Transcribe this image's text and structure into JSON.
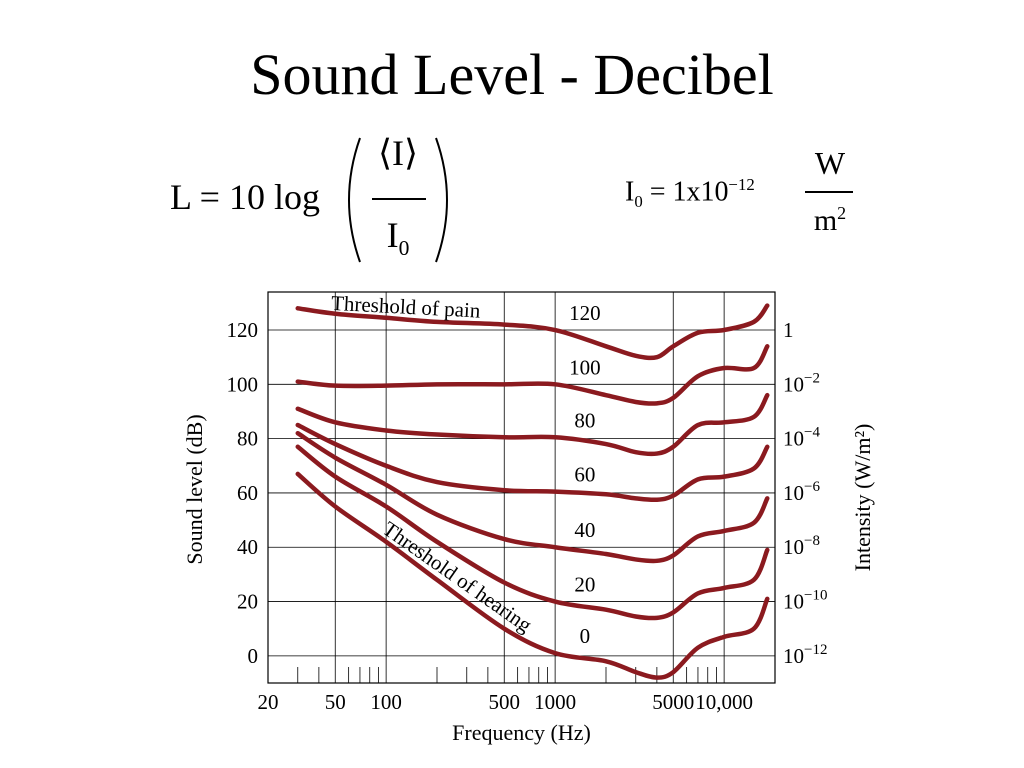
{
  "slide": {
    "title": "Sound Level - Decibel"
  },
  "formula_level": {
    "lhs": "L = 10 log",
    "numerator": "⟨I⟩",
    "denominator_base": "I",
    "denominator_sub": "0"
  },
  "formula_reference": {
    "symbol": "I",
    "symbol_sub": "0",
    "equals": " = 1x10",
    "exponent": "−12",
    "unit_numerator": "W",
    "unit_denominator_base": "m",
    "unit_denominator_exp": "2"
  },
  "colors": {
    "curve": "#8b1a1f",
    "grid": "#000000",
    "background": "#ffffff"
  },
  "chart_data": {
    "type": "line",
    "x_scale": "log",
    "xlabel": "Frequency (Hz)",
    "ylabel": "Sound level (dB)",
    "y2label": "Intensity (W/m²)",
    "xlim": [
      20,
      20000
    ],
    "ylim": [
      -10,
      134
    ],
    "x_ticks": [
      "20",
      "50",
      "100",
      "500",
      "1000",
      "5000",
      "10,000"
    ],
    "x_tick_values": [
      20,
      50,
      100,
      500,
      1000,
      5000,
      10000
    ],
    "y_ticks": [
      "0",
      "20",
      "40",
      "60",
      "80",
      "100",
      "120"
    ],
    "y_tick_values": [
      0,
      20,
      40,
      60,
      80,
      100,
      120
    ],
    "y2_ticks": [
      {
        "base": "1",
        "exp": ""
      },
      {
        "base": "10",
        "exp": "−2"
      },
      {
        "base": "10",
        "exp": "−4"
      },
      {
        "base": "10",
        "exp": "−6"
      },
      {
        "base": "10",
        "exp": "−8"
      },
      {
        "base": "10",
        "exp": "−10"
      },
      {
        "base": "10",
        "exp": "−12"
      }
    ],
    "y2_tick_values": [
      120,
      100,
      80,
      60,
      40,
      20,
      0
    ],
    "vertical_gridlines": [
      50,
      100,
      500,
      1000,
      5000,
      10000
    ],
    "minor_ticks": [
      30,
      40,
      60,
      70,
      80,
      90,
      200,
      300,
      400,
      600,
      700,
      800,
      900,
      2000,
      3000,
      4000,
      6000,
      7000,
      8000,
      9000
    ],
    "grid": true,
    "series": [
      {
        "name": "120",
        "x": [
          30,
          50,
          100,
          200,
          500,
          1000,
          2000,
          3000,
          4000,
          5000,
          7000,
          10000,
          15000,
          18000
        ],
        "y": [
          128,
          126,
          124.5,
          123,
          122,
          120,
          114,
          110.5,
          110,
          114,
          119,
          120,
          123,
          129
        ]
      },
      {
        "name": "100",
        "x": [
          30,
          50,
          100,
          200,
          500,
          1000,
          2000,
          3000,
          4000,
          5000,
          7000,
          10000,
          15000,
          18000
        ],
        "y": [
          101,
          99.5,
          99.5,
          100,
          100,
          100,
          96,
          93.5,
          93,
          95,
          103,
          106,
          106,
          114
        ]
      },
      {
        "name": "80",
        "x": [
          30,
          50,
          100,
          200,
          500,
          1000,
          2000,
          3000,
          4000,
          5000,
          7000,
          10000,
          15000,
          18000
        ],
        "y": [
          91,
          86,
          83,
          81.5,
          80.5,
          80.5,
          78,
          75,
          74.5,
          77,
          85,
          86,
          88,
          96
        ]
      },
      {
        "name": "60",
        "x": [
          30,
          50,
          100,
          200,
          500,
          1000,
          2000,
          3000,
          4000,
          5000,
          7000,
          10000,
          15000,
          18000
        ],
        "y": [
          85,
          78,
          70,
          64,
          61,
          60.5,
          59.5,
          58,
          57.5,
          59,
          65,
          66,
          69,
          77
        ]
      },
      {
        "name": "40",
        "x": [
          30,
          50,
          100,
          200,
          500,
          1000,
          2000,
          3000,
          4000,
          5000,
          7000,
          10000,
          15000,
          18000
        ],
        "y": [
          82,
          73,
          63,
          52,
          43,
          40,
          37.5,
          35.5,
          35,
          37,
          44,
          46,
          49,
          58
        ]
      },
      {
        "name": "20",
        "x": [
          30,
          50,
          100,
          200,
          500,
          1000,
          2000,
          3000,
          4000,
          5000,
          7000,
          10000,
          15000,
          18000
        ],
        "y": [
          77,
          66,
          55,
          42,
          27,
          20,
          17,
          14.5,
          14,
          16,
          23,
          25,
          28,
          39
        ]
      },
      {
        "name": "0",
        "x": [
          30,
          50,
          100,
          200,
          500,
          1000,
          2000,
          3000,
          4000,
          5000,
          7000,
          10000,
          15000,
          18000
        ],
        "y": [
          67,
          55,
          42,
          28,
          10,
          1,
          -2,
          -6,
          -8,
          -6,
          3,
          7,
          10,
          21
        ]
      }
    ],
    "annotations": [
      {
        "text": "Threshold of pain",
        "x": 130,
        "y": 126,
        "angle": 3
      },
      {
        "text": "Threshold of hearing",
        "x": 250,
        "y": 27,
        "angle": 35
      }
    ]
  }
}
